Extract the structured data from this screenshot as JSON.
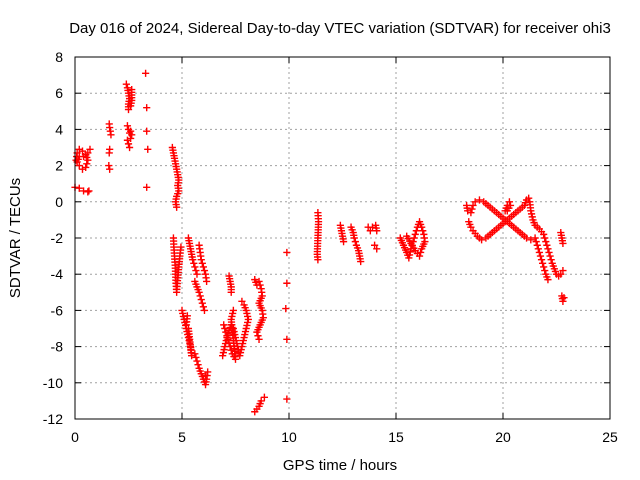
{
  "chart_data": {
    "type": "scatter",
    "title": "Day 016 of 2024, Sidereal Day-to-day VTEC variation (SDTVAR) for receiver ohi3",
    "xlabel": "GPS time / hours",
    "ylabel": "SDTVAR / TECUs",
    "xlim": [
      0,
      25
    ],
    "ylim": [
      -12,
      8
    ],
    "xticks": [
      0,
      5,
      10,
      15,
      20,
      25
    ],
    "yticks": [
      -12,
      -10,
      -8,
      -6,
      -4,
      -2,
      0,
      2,
      4,
      6,
      8
    ],
    "grid": true,
    "marker": "+",
    "color": "#ff0000",
    "series": [
      {
        "name": "SDTVAR",
        "segments": [
          [
            [
              0.0,
              0.8
            ],
            [
              0.2,
              0.75
            ],
            [
              0.4,
              0.6
            ],
            [
              0.6,
              0.55
            ],
            [
              0.65,
              0.6
            ]
          ],
          [
            [
              0.05,
              2.3
            ],
            [
              0.1,
              2.7
            ],
            [
              0.2,
              2.9
            ],
            [
              0.35,
              2.8
            ],
            [
              0.5,
              2.6
            ],
            [
              0.6,
              2.3
            ],
            [
              0.5,
              1.9
            ],
            [
              0.35,
              1.8
            ],
            [
              0.2,
              2.0
            ],
            [
              0.1,
              2.2
            ],
            [
              0.2,
              2.5
            ],
            [
              0.4,
              2.5
            ],
            [
              0.6,
              2.7
            ],
            [
              0.7,
              2.9
            ]
          ],
          [
            [
              1.6,
              4.3
            ],
            [
              1.62,
              4.1
            ],
            [
              1.65,
              3.9
            ],
            [
              1.68,
              3.7
            ]
          ],
          [
            [
              1.6,
              2.7
            ],
            [
              1.62,
              2.9
            ]
          ],
          [
            [
              1.58,
              2.0
            ],
            [
              1.62,
              1.8
            ]
          ],
          [
            [
              2.4,
              6.5
            ],
            [
              2.45,
              6.3
            ],
            [
              2.5,
              6.0
            ],
            [
              2.55,
              5.7
            ],
            [
              2.5,
              5.4
            ],
            [
              2.5,
              5.1
            ],
            [
              2.6,
              5.3
            ],
            [
              2.65,
              5.6
            ],
            [
              2.65,
              6.2
            ]
          ],
          [
            [
              2.45,
              4.2
            ],
            [
              2.5,
              4.0
            ],
            [
              2.55,
              3.8
            ],
            [
              2.6,
              3.9
            ],
            [
              2.65,
              3.7
            ],
            [
              2.6,
              3.5
            ]
          ],
          [
            [
              2.45,
              3.4
            ],
            [
              2.5,
              3.2
            ],
            [
              2.55,
              3.0
            ]
          ],
          [
            [
              3.3,
              7.1
            ]
          ],
          [
            [
              3.35,
              5.2
            ]
          ],
          [
            [
              3.35,
              3.9
            ]
          ],
          [
            [
              3.4,
              2.9
            ]
          ],
          [
            [
              3.35,
              0.8
            ]
          ],
          [
            [
              4.55,
              3.0
            ],
            [
              4.6,
              2.7
            ],
            [
              4.65,
              2.4
            ],
            [
              4.7,
              2.1
            ],
            [
              4.75,
              1.8
            ],
            [
              4.8,
              1.5
            ],
            [
              4.85,
              1.2
            ],
            [
              4.8,
              0.9
            ],
            [
              4.85,
              0.6
            ],
            [
              4.75,
              0.3
            ],
            [
              4.7,
              0.0
            ],
            [
              4.75,
              -0.3
            ]
          ],
          [
            [
              4.6,
              -2.0
            ],
            [
              4.62,
              -2.5
            ],
            [
              4.65,
              -3.0
            ],
            [
              4.68,
              -3.5
            ],
            [
              4.7,
              -4.0
            ],
            [
              4.72,
              -4.5
            ],
            [
              4.75,
              -5.0
            ],
            [
              4.8,
              -4.2
            ],
            [
              4.85,
              -3.6
            ],
            [
              4.9,
              -3.0
            ],
            [
              4.95,
              -2.5
            ]
          ],
          [
            [
              5.0,
              -6.0
            ],
            [
              5.1,
              -6.5
            ],
            [
              5.2,
              -7.0
            ],
            [
              5.3,
              -7.5
            ],
            [
              5.4,
              -8.0
            ],
            [
              5.45,
              -8.5
            ],
            [
              5.3,
              -7.0
            ],
            [
              5.2,
              -6.8
            ],
            [
              5.25,
              -6.3
            ]
          ],
          [
            [
              5.3,
              -2.0
            ],
            [
              5.35,
              -2.3
            ],
            [
              5.4,
              -2.6
            ],
            [
              5.45,
              -2.9
            ],
            [
              5.5,
              -3.2
            ],
            [
              5.6,
              -3.6
            ],
            [
              5.7,
              -4.0
            ]
          ],
          [
            [
              5.6,
              -4.4
            ],
            [
              5.7,
              -4.7
            ],
            [
              5.8,
              -5.0
            ],
            [
              5.9,
              -5.4
            ],
            [
              6.0,
              -5.8
            ],
            [
              6.05,
              -6.0
            ]
          ],
          [
            [
              5.8,
              -2.4
            ],
            [
              5.85,
              -2.8
            ],
            [
              5.9,
              -3.2
            ],
            [
              6.0,
              -3.6
            ],
            [
              6.1,
              -4.0
            ],
            [
              6.15,
              -4.4
            ]
          ],
          [
            [
              5.6,
              -8.4
            ],
            [
              5.7,
              -8.8
            ],
            [
              5.8,
              -9.2
            ],
            [
              5.9,
              -9.5
            ],
            [
              6.0,
              -9.8
            ],
            [
              6.1,
              -10.1
            ],
            [
              6.15,
              -9.8
            ],
            [
              6.2,
              -9.4
            ],
            [
              6.1,
              -9.6
            ]
          ],
          [
            [
              6.9,
              -8.5
            ],
            [
              7.0,
              -8.0
            ],
            [
              7.1,
              -7.5
            ],
            [
              7.2,
              -7.1
            ],
            [
              7.3,
              -6.8
            ],
            [
              7.4,
              -7.0
            ],
            [
              7.5,
              -7.5
            ],
            [
              7.6,
              -8.0
            ],
            [
              7.7,
              -8.5
            ],
            [
              7.8,
              -8.0
            ],
            [
              7.9,
              -7.5
            ],
            [
              8.0,
              -7.0
            ],
            [
              8.1,
              -6.5
            ],
            [
              8.0,
              -6.0
            ],
            [
              7.9,
              -5.7
            ],
            [
              7.8,
              -5.5
            ]
          ],
          [
            [
              6.95,
              -6.8
            ],
            [
              7.05,
              -7.2
            ],
            [
              7.15,
              -7.6
            ],
            [
              7.25,
              -8.0
            ],
            [
              7.35,
              -8.4
            ],
            [
              7.5,
              -8.7
            ],
            [
              7.3,
              -6.5
            ],
            [
              7.4,
              -6.0
            ]
          ],
          [
            [
              7.2,
              -4.1
            ],
            [
              7.25,
              -4.4
            ],
            [
              7.3,
              -4.7
            ],
            [
              7.3,
              -5.0
            ]
          ],
          [
            [
              8.4,
              -4.3
            ],
            [
              8.5,
              -4.6
            ],
            [
              8.6,
              -4.4
            ],
            [
              8.7,
              -4.8
            ],
            [
              8.75,
              -5.2
            ],
            [
              8.6,
              -5.6
            ],
            [
              8.75,
              -6.0
            ],
            [
              8.8,
              -6.4
            ],
            [
              8.5,
              -7.2
            ],
            [
              8.6,
              -7.6
            ]
          ],
          [
            [
              8.4,
              -11.6
            ],
            [
              8.6,
              -11.3
            ],
            [
              8.7,
              -11.0
            ],
            [
              8.85,
              -10.8
            ]
          ],
          [
            [
              9.9,
              -2.8
            ]
          ],
          [
            [
              9.9,
              -4.5
            ]
          ],
          [
            [
              9.85,
              -5.9
            ]
          ],
          [
            [
              9.9,
              -7.6
            ]
          ],
          [
            [
              9.9,
              -10.9
            ]
          ],
          [
            [
              11.35,
              -0.6
            ],
            [
              11.38,
              -1.1
            ],
            [
              11.32,
              -2.9
            ],
            [
              11.35,
              -3.2
            ]
          ],
          [
            [
              12.4,
              -1.3
            ],
            [
              12.45,
              -1.6
            ],
            [
              12.5,
              -1.9
            ],
            [
              12.55,
              -2.2
            ]
          ],
          [
            [
              12.9,
              -1.4
            ],
            [
              13.0,
              -1.7
            ],
            [
              13.05,
              -2.0
            ],
            [
              13.15,
              -2.4
            ],
            [
              13.25,
              -2.7
            ],
            [
              13.3,
              -3.0
            ],
            [
              13.35,
              -3.3
            ]
          ],
          [
            [
              13.7,
              -1.4
            ],
            [
              13.8,
              -1.6
            ],
            [
              13.9,
              -1.4
            ],
            [
              14.05,
              -1.3
            ],
            [
              14.1,
              -1.6
            ]
          ],
          [
            [
              14.0,
              -2.4
            ],
            [
              14.1,
              -2.6
            ]
          ],
          [
            [
              15.2,
              -2.0
            ],
            [
              15.35,
              -2.4
            ],
            [
              15.5,
              -2.8
            ],
            [
              15.6,
              -3.1
            ],
            [
              15.7,
              -2.6
            ],
            [
              15.8,
              -2.2
            ],
            [
              15.9,
              -1.8
            ],
            [
              16.0,
              -1.4
            ],
            [
              16.1,
              -1.1
            ],
            [
              16.2,
              -1.4
            ],
            [
              16.3,
              -1.8
            ],
            [
              16.35,
              -2.2
            ],
            [
              16.2,
              -2.6
            ],
            [
              16.1,
              -3.0
            ],
            [
              15.9,
              -2.7
            ],
            [
              15.7,
              -2.3
            ],
            [
              15.5,
              -1.9
            ]
          ],
          [
            [
              18.4,
              -1.1
            ],
            [
              18.5,
              -1.4
            ],
            [
              18.6,
              -1.6
            ],
            [
              18.8,
              -1.9
            ],
            [
              19.0,
              -2.1
            ],
            [
              19.2,
              -2.0
            ],
            [
              19.4,
              -1.8
            ],
            [
              19.6,
              -1.6
            ],
            [
              19.8,
              -1.4
            ],
            [
              20.0,
              -1.2
            ],
            [
              20.2,
              -1.0
            ],
            [
              20.4,
              -0.8
            ],
            [
              20.6,
              -0.6
            ],
            [
              20.8,
              -0.4
            ],
            [
              21.0,
              -0.2
            ],
            [
              21.1,
              0.1
            ],
            [
              21.2,
              0.2
            ],
            [
              21.25,
              0.0
            ],
            [
              21.3,
              -0.5
            ],
            [
              21.4,
              -1.0
            ],
            [
              21.5,
              -1.3
            ],
            [
              21.7,
              -1.5
            ],
            [
              21.9,
              -1.8
            ],
            [
              22.0,
              -2.2
            ],
            [
              22.1,
              -2.6
            ],
            [
              22.2,
              -3.0
            ],
            [
              22.3,
              -3.4
            ],
            [
              22.4,
              -3.7
            ],
            [
              22.5,
              -4.0
            ],
            [
              22.6,
              -4.1
            ],
            [
              22.7,
              -4.0
            ],
            [
              22.8,
              -3.8
            ]
          ],
          [
            [
              18.5,
              -0.6
            ],
            [
              18.6,
              -0.2
            ],
            [
              18.7,
              0.0
            ],
            [
              18.9,
              0.1
            ],
            [
              19.1,
              0.0
            ],
            [
              19.3,
              -0.2
            ],
            [
              19.5,
              -0.4
            ],
            [
              19.7,
              -0.6
            ],
            [
              19.9,
              -0.8
            ],
            [
              20.1,
              -1.0
            ],
            [
              20.3,
              -1.2
            ],
            [
              20.5,
              -1.4
            ],
            [
              20.7,
              -1.6
            ],
            [
              20.9,
              -1.8
            ],
            [
              21.1,
              -2.0
            ],
            [
              21.3,
              -2.1
            ],
            [
              21.5,
              -2.0
            ],
            [
              21.6,
              -2.4
            ],
            [
              21.7,
              -2.8
            ],
            [
              21.8,
              -3.2
            ],
            [
              21.9,
              -3.6
            ],
            [
              22.0,
              -4.0
            ],
            [
              22.1,
              -4.3
            ]
          ],
          [
            [
              18.3,
              -0.2
            ],
            [
              18.35,
              -0.5
            ]
          ],
          [
            [
              20.1,
              -0.5
            ],
            [
              20.2,
              -0.2
            ],
            [
              20.3,
              0.0
            ],
            [
              20.35,
              -0.2
            ],
            [
              20.2,
              -0.5
            ]
          ],
          [
            [
              22.7,
              -1.7
            ],
            [
              22.75,
              -2.0
            ],
            [
              22.8,
              -2.3
            ]
          ],
          [
            [
              22.75,
              -5.2
            ],
            [
              22.8,
              -5.5
            ],
            [
              22.85,
              -5.3
            ]
          ]
        ]
      }
    ]
  }
}
